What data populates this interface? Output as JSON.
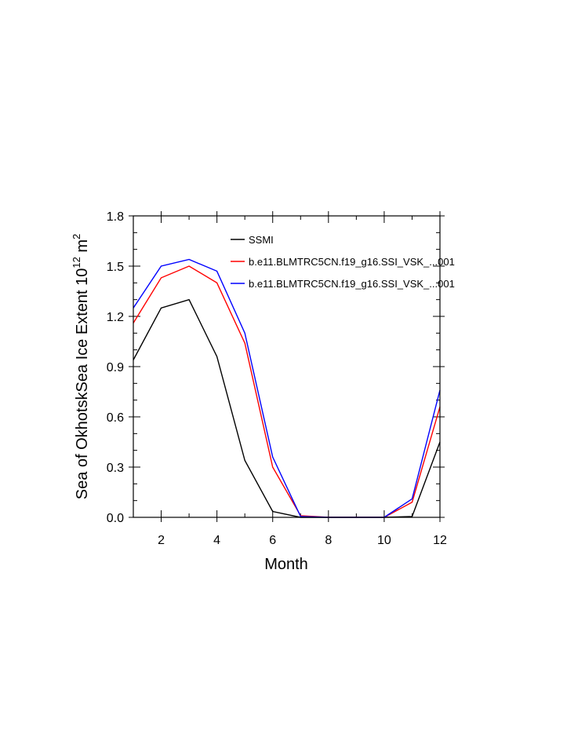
{
  "chart_data": {
    "type": "line",
    "xlabel": "Month",
    "ylabel": "Sea of OkhotskSea Ice Extent 10",
    "ylabel_exponent": "12",
    "ylabel_unit": " m",
    "ylabel_unit_exponent": "2",
    "xlim": [
      1,
      12
    ],
    "ylim": [
      0,
      1.8
    ],
    "x_ticks": [
      2,
      4,
      6,
      8,
      10,
      12
    ],
    "x_tick_labels": [
      "2",
      "4",
      "6",
      "8",
      "10",
      "12"
    ],
    "y_ticks": [
      0,
      0.3,
      0.6,
      0.9,
      1.2,
      1.5,
      1.8
    ],
    "y_tick_labels": [
      "0.0",
      "0.3",
      "0.6",
      "0.9",
      "1.2",
      "1.5",
      "1.8"
    ],
    "x": [
      1,
      2,
      3,
      4,
      5,
      6,
      7,
      8,
      9,
      10,
      11,
      12
    ],
    "series": [
      {
        "name": "SSMI",
        "color": "#000000",
        "values": [
          0.94,
          1.25,
          1.3,
          0.96,
          0.34,
          0.035,
          0.0,
          0.0,
          0.0,
          0.0,
          0.005,
          0.45
        ]
      },
      {
        "name": "b.e11.BLMTRC5CN.f19_g16.SSI_VSK_...001",
        "color": "#ff0000",
        "values": [
          1.16,
          1.43,
          1.5,
          1.4,
          1.04,
          0.3,
          0.01,
          0.0,
          0.0,
          0.0,
          0.09,
          0.66
        ]
      },
      {
        "name": "b.e11.BLMTRC5CN.f19_g16.SSI_VSK_...001",
        "color": "#0000ff",
        "values": [
          1.25,
          1.5,
          1.54,
          1.47,
          1.1,
          0.36,
          0.005,
          0.0,
          0.0,
          0.0,
          0.11,
          0.76
        ]
      }
    ],
    "legend_position": "top-right",
    "grid": false
  }
}
